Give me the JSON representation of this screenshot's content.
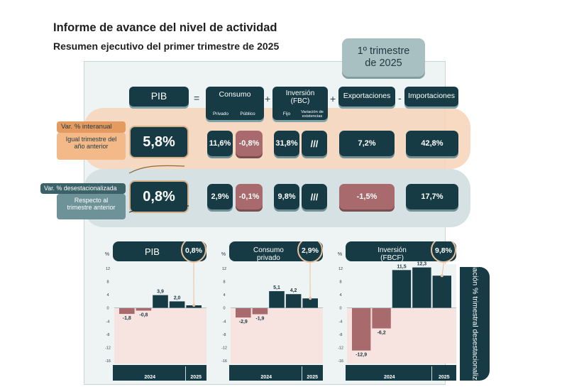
{
  "header": {
    "title": "Informe de avance del nivel de actividad",
    "subtitle": "Resumen ejecutivo del primer trimestre de 2025",
    "badge": "1º trimestre de 2025"
  },
  "equation": {
    "pib": "PIB",
    "eq": "=",
    "plus1": "+",
    "plus2": "+",
    "minus": "-",
    "consumo": "Consumo",
    "consumo_privado": "Privado",
    "consumo_publico": "Público",
    "inversion": "Inversión (FBC)",
    "inv_fijo": "Fijo",
    "inv_var": "Variación de existencias",
    "exportaciones": "Exportaciones",
    "importaciones": "Importaciones"
  },
  "rows": {
    "interanual": {
      "tag": "Var. % interanual",
      "desc": "Igual trimestre del año anterior",
      "pib": "5,8%",
      "privado": "11,6%",
      "publico": "-0,8%",
      "fijo": "31,8%",
      "var_ex": "///",
      "export": "7,2%",
      "import": "42,8%"
    },
    "desest": {
      "tag": "Var. % desestacionalizada",
      "desc": "Respecto al trimestre anterior",
      "pib": "0,8%",
      "privado": "2,9%",
      "publico": "-0,1%",
      "fijo": "9,8%",
      "var_ex": "///",
      "export": "-1,5%",
      "import": "17,7%"
    }
  },
  "side_label": "Variación % trimestral desestacionalizada",
  "colors": {
    "dark": "#173b45",
    "negative": "#a86a6d",
    "orange_band": "#f7d4b8",
    "teal_band": "#d6e1e3"
  },
  "chart_data": [
    {
      "type": "bar",
      "title": "PIB",
      "highlight": "0,8%",
      "unit_label": "%",
      "categories": [
        "I",
        "II",
        "III",
        "IV",
        "I"
      ],
      "years": [
        "2024",
        "2025"
      ],
      "values": [
        -1.8,
        -0.8,
        3.9,
        2.0,
        0.8
      ],
      "labels": [
        "-1,8",
        "-0,8",
        "3,9",
        "2,0",
        ""
      ],
      "ylim": [
        -16,
        12
      ],
      "yticks": [
        "12",
        "8",
        "4",
        "0",
        "-4",
        "-8",
        "-12",
        "-16"
      ]
    },
    {
      "type": "bar",
      "title": "Consumo privado",
      "highlight": "2,9%",
      "unit_label": "%",
      "categories": [
        "I",
        "II",
        "III",
        "IV",
        "I"
      ],
      "years": [
        "2024",
        "2025"
      ],
      "values": [
        -2.9,
        -1.9,
        5.1,
        4.2,
        2.9
      ],
      "labels": [
        "-2,9",
        "-1,9",
        "5,1",
        "4,2",
        ""
      ],
      "ylim": [
        -16,
        12
      ],
      "yticks": [
        "12",
        "8",
        "4",
        "0",
        "-4",
        "-8",
        "-12",
        "-16"
      ]
    },
    {
      "type": "bar",
      "title": "Inversión (FBCF)",
      "highlight": "9,8%",
      "unit_label": "%",
      "categories": [
        "I",
        "II",
        "III",
        "IV",
        "I"
      ],
      "years": [
        "2024",
        "2025"
      ],
      "values": [
        -12.9,
        -6.2,
        11.5,
        12.3,
        9.8
      ],
      "labels": [
        "-12,9",
        "-6,2",
        "11,5",
        "12,3",
        ""
      ],
      "ylim": [
        -16,
        12
      ],
      "yticks": [
        "12",
        "8",
        "4",
        "0",
        "-4",
        "-8",
        "-12",
        "-16"
      ]
    }
  ]
}
